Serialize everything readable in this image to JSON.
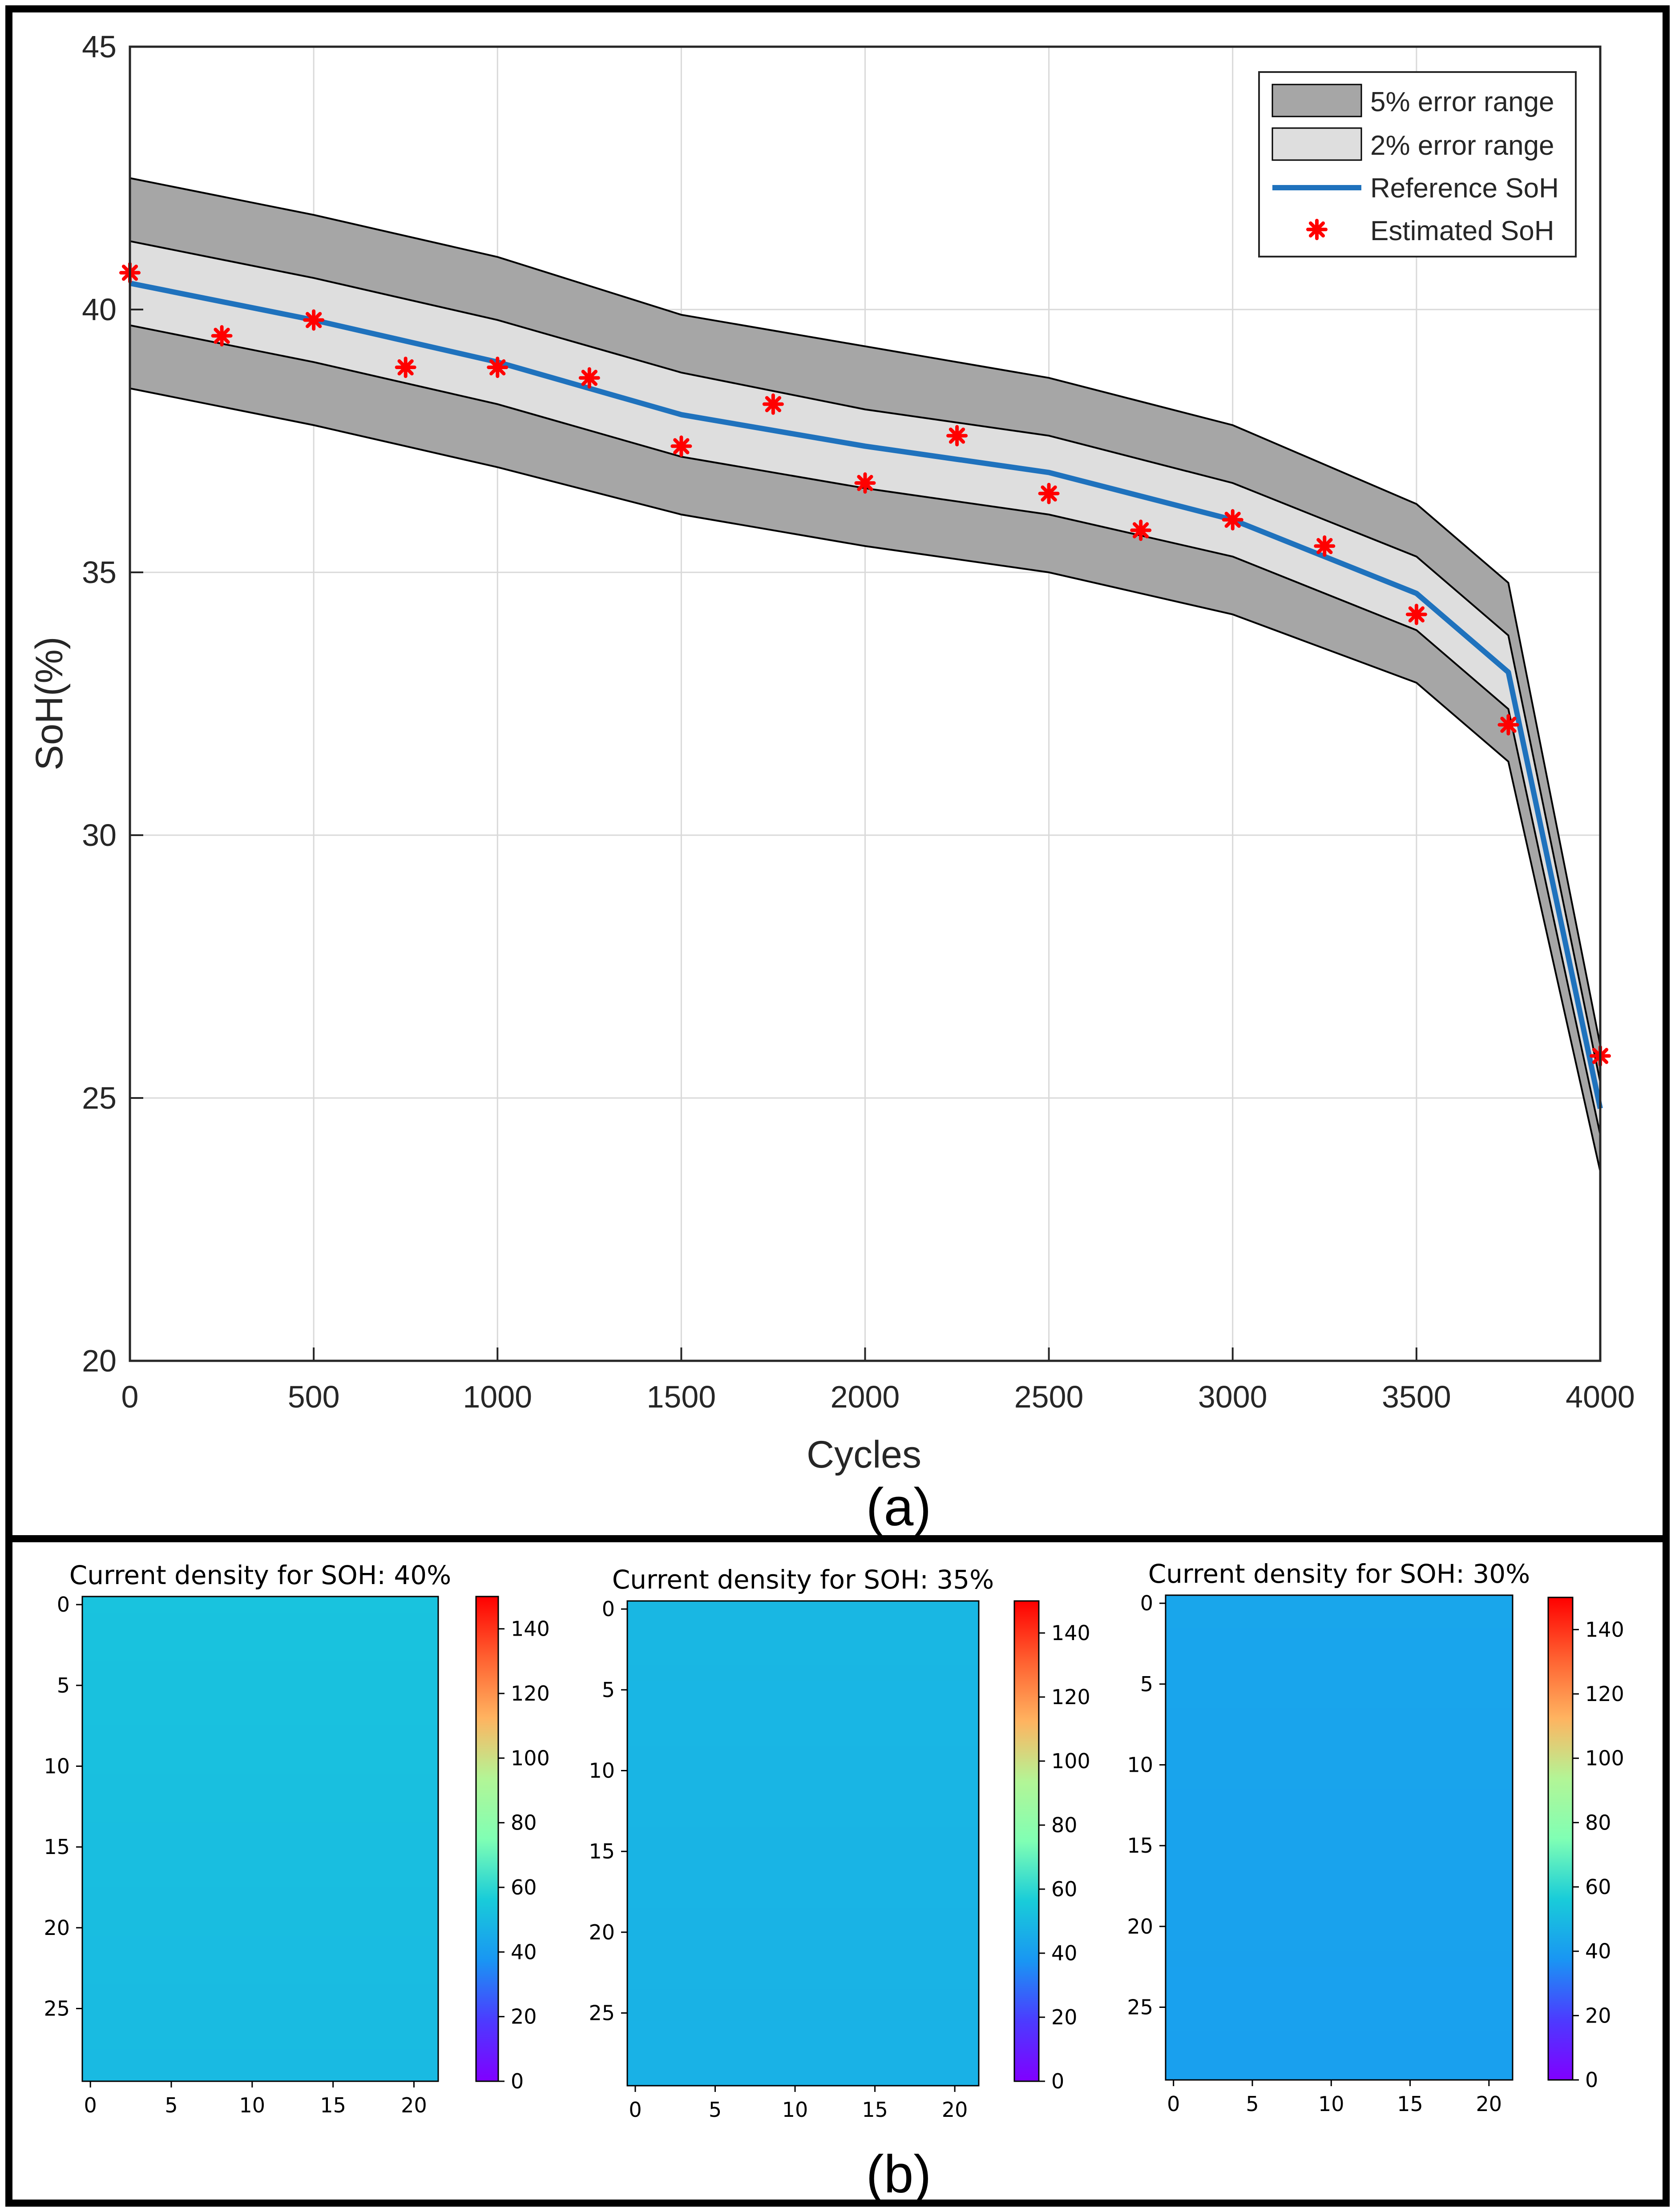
{
  "panel_a_label": "(a)",
  "panel_b_label": "(b)",
  "chart_data": [
    {
      "type": "line",
      "xlabel": "Cycles",
      "ylabel": "SoH(%)",
      "xlim": [
        0,
        4000
      ],
      "ylim": [
        20,
        45
      ],
      "grid": true,
      "xticks": [
        0,
        500,
        1000,
        1500,
        2000,
        2500,
        3000,
        3500,
        4000
      ],
      "yticks": [
        20,
        25,
        30,
        35,
        40,
        45
      ],
      "legend_position": "top-right",
      "legend": [
        "5% error range",
        "2% error range",
        "Reference SoH",
        "Estimated SoH"
      ],
      "x": [
        0,
        500,
        1000,
        1500,
        2000,
        2500,
        3000,
        3500,
        3750,
        4000
      ],
      "reference_soh": [
        40.5,
        39.8,
        39.0,
        38.0,
        37.4,
        36.9,
        36.0,
        34.6,
        33.1,
        24.8
      ],
      "band_5pct_upper": [
        42.5,
        41.8,
        41.0,
        39.9,
        39.3,
        38.7,
        37.8,
        36.3,
        34.8,
        26.0
      ],
      "band_5pct_lower": [
        38.5,
        37.8,
        37.0,
        36.1,
        35.5,
        35.0,
        34.2,
        32.9,
        31.4,
        23.6
      ],
      "band_2pct_upper": [
        41.3,
        40.6,
        39.8,
        38.8,
        38.1,
        37.6,
        36.7,
        35.3,
        33.8,
        25.3
      ],
      "band_2pct_lower": [
        39.7,
        39.0,
        38.2,
        37.2,
        36.6,
        36.1,
        35.3,
        33.9,
        32.4,
        24.3
      ],
      "estimated_soh": {
        "x": [
          0,
          250,
          500,
          750,
          1000,
          1250,
          1500,
          1750,
          2000,
          2250,
          2500,
          2750,
          3000,
          3250,
          3500,
          3750,
          4000
        ],
        "y": [
          40.7,
          39.5,
          39.8,
          38.9,
          38.9,
          38.7,
          37.4,
          38.2,
          36.7,
          37.6,
          36.5,
          35.8,
          36.0,
          35.5,
          34.2,
          32.1,
          25.8
        ]
      },
      "colors": {
        "band_5pct": "#a6a6a6",
        "band_2pct": "#dedede",
        "reference": "#1f72bd",
        "estimated": "#ff0000",
        "grid": "#d9d9d9"
      }
    },
    {
      "type": "heatmap",
      "title": "Current density for SOH: 40%",
      "rows": 30,
      "cols": 22,
      "xticks": [
        0,
        5,
        10,
        15,
        20
      ],
      "yticks": [
        0,
        5,
        10,
        15,
        20,
        25
      ],
      "colorbar_range": [
        0,
        150
      ],
      "colorbar_ticks": [
        0,
        20,
        40,
        60,
        80,
        100,
        120,
        140
      ],
      "value_top": 53,
      "value_bottom": 50,
      "colormap": "rainbow"
    },
    {
      "type": "heatmap",
      "title": "Current density for SOH: 35%",
      "rows": 30,
      "cols": 22,
      "xticks": [
        0,
        5,
        10,
        15,
        20
      ],
      "yticks": [
        0,
        5,
        10,
        15,
        20,
        25
      ],
      "colorbar_range": [
        0,
        150
      ],
      "colorbar_ticks": [
        0,
        20,
        40,
        60,
        80,
        100,
        120,
        140
      ],
      "value_top": 49,
      "value_bottom": 47,
      "colormap": "rainbow"
    },
    {
      "type": "heatmap",
      "title": "Current density for SOH: 30%",
      "rows": 30,
      "cols": 22,
      "xticks": [
        0,
        5,
        10,
        15,
        20
      ],
      "yticks": [
        0,
        5,
        10,
        15,
        20,
        25
      ],
      "colorbar_range": [
        0,
        150
      ],
      "colorbar_ticks": [
        0,
        20,
        40,
        60,
        80,
        100,
        120,
        140
      ],
      "value_top": 43,
      "value_bottom": 41,
      "colormap": "rainbow"
    }
  ]
}
